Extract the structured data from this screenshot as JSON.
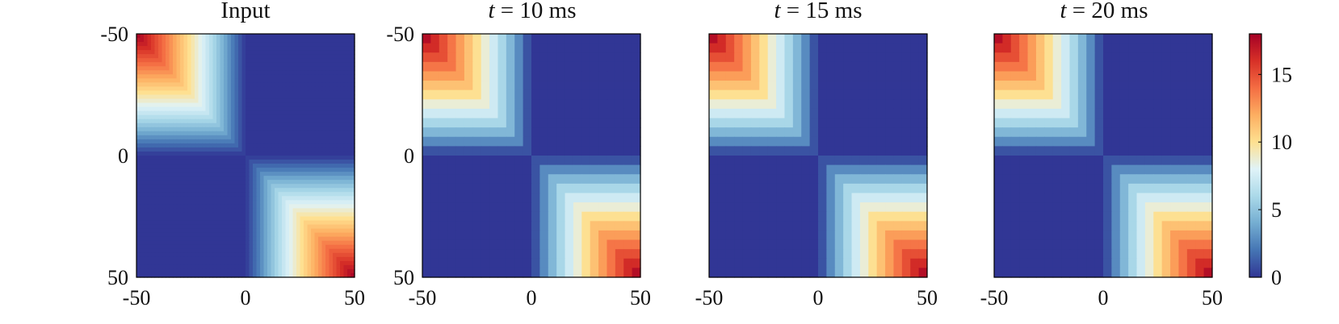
{
  "chart_data": [
    {
      "type": "heatmap",
      "title": "Input",
      "x_ticks": [
        "-50",
        "0",
        "50"
      ],
      "y_ticks": [
        "-50",
        "0",
        "50"
      ],
      "xlim": [
        -50,
        50
      ],
      "ylim": [
        -50,
        50
      ],
      "grid_size": 60,
      "smooth": true,
      "peak_value": 18,
      "breakpoint": 20,
      "description_of_pattern": [
        "high in top-left and bottom-right quadrants (corners peak ~18)",
        "near 0 in off-diagonal quadrants"
      ]
    },
    {
      "type": "heatmap",
      "title_var": "t",
      "title_rest": " = 10 ms",
      "x_ticks": [
        "-50",
        "0",
        "50"
      ],
      "y_ticks": [
        "-50",
        "0",
        "50"
      ],
      "xlim": [
        -50,
        50
      ],
      "ylim": [
        -50,
        50
      ],
      "grid_size": 26,
      "smooth": false,
      "peak_value": 18,
      "breakpoint": 16
    },
    {
      "type": "heatmap",
      "title_var": "t",
      "title_rest": " = 15 ms",
      "x_ticks": [
        "-50",
        "0",
        "50"
      ],
      "y_ticks": [],
      "xlim": [
        -50,
        50
      ],
      "ylim": [
        -50,
        50
      ],
      "grid_size": 26,
      "smooth": false,
      "peak_value": 18,
      "breakpoint": 16
    },
    {
      "type": "heatmap",
      "title_var": "t",
      "title_rest": " = 20 ms",
      "x_ticks": [
        "-50",
        "0",
        "50"
      ],
      "y_ticks": [],
      "xlim": [
        -50,
        50
      ],
      "ylim": [
        -50,
        50
      ],
      "grid_size": 26,
      "smooth": false,
      "peak_value": 18,
      "breakpoint": 16
    }
  ],
  "colorbar": {
    "ticks": [
      "0",
      "5",
      "10",
      "15"
    ],
    "tick_values": [
      0,
      5,
      10,
      15
    ],
    "range": [
      0,
      18
    ],
    "colors": [
      "#313695",
      "#4575b4",
      "#74add1",
      "#abd9e9",
      "#e0f3f8",
      "#fee090",
      "#fdae61",
      "#f46d43",
      "#d73027",
      "#a50026"
    ]
  }
}
